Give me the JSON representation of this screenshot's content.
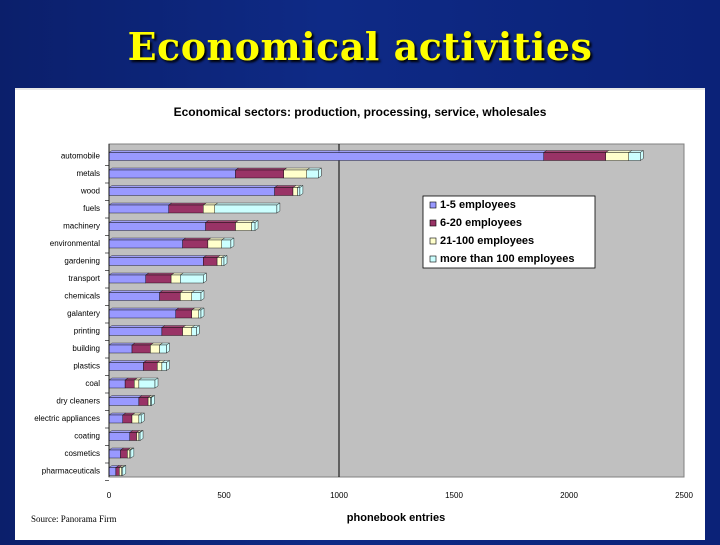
{
  "slide": {
    "title": "Economical activities",
    "source": "Source: Panorama Firm"
  },
  "colors": {
    "background": "#0b1f6b",
    "title": "#ffff00",
    "plot_area": "#c0c0c0",
    "series": [
      "#9999ff",
      "#993366",
      "#ffffcc",
      "#ccffff"
    ]
  },
  "chart_data": {
    "type": "bar",
    "orientation": "horizontal",
    "stacked": true,
    "title": "Economical sectors: production, processing, service, wholesales",
    "xlabel": "phonebook entries",
    "ylabel": "",
    "xlim": [
      0,
      2500
    ],
    "xticks": [
      0,
      500,
      1000,
      1500,
      2000,
      2500
    ],
    "reference_line": 1000,
    "legend_position": "right",
    "categories": [
      "automobile",
      "metals",
      "wood",
      "fuels",
      "machinery",
      "environmental",
      "gardening",
      "transport",
      "chemicals",
      "galantery",
      "printing",
      "building",
      "plastics",
      "coal",
      "dry cleaners",
      "electric appliances",
      "coating",
      "cosmetics",
      "pharmaceuticals"
    ],
    "series": [
      {
        "name": "1-5 employees",
        "values": [
          1890,
          550,
          720,
          260,
          420,
          320,
          410,
          160,
          220,
          290,
          230,
          100,
          150,
          70,
          130,
          60,
          90,
          50,
          30
        ]
      },
      {
        "name": "6-20 employees",
        "values": [
          270,
          210,
          80,
          150,
          130,
          110,
          60,
          110,
          90,
          70,
          90,
          80,
          60,
          40,
          40,
          40,
          30,
          30,
          15
        ]
      },
      {
        "name": "21-100 employees",
        "values": [
          100,
          100,
          20,
          50,
          70,
          60,
          20,
          40,
          50,
          30,
          40,
          40,
          20,
          20,
          10,
          30,
          10,
          10,
          10
        ]
      },
      {
        "name": "more than 100 employees",
        "values": [
          50,
          50,
          10,
          270,
          15,
          40,
          10,
          100,
          40,
          10,
          20,
          30,
          20,
          70,
          5,
          10,
          5,
          5,
          5
        ]
      }
    ]
  }
}
